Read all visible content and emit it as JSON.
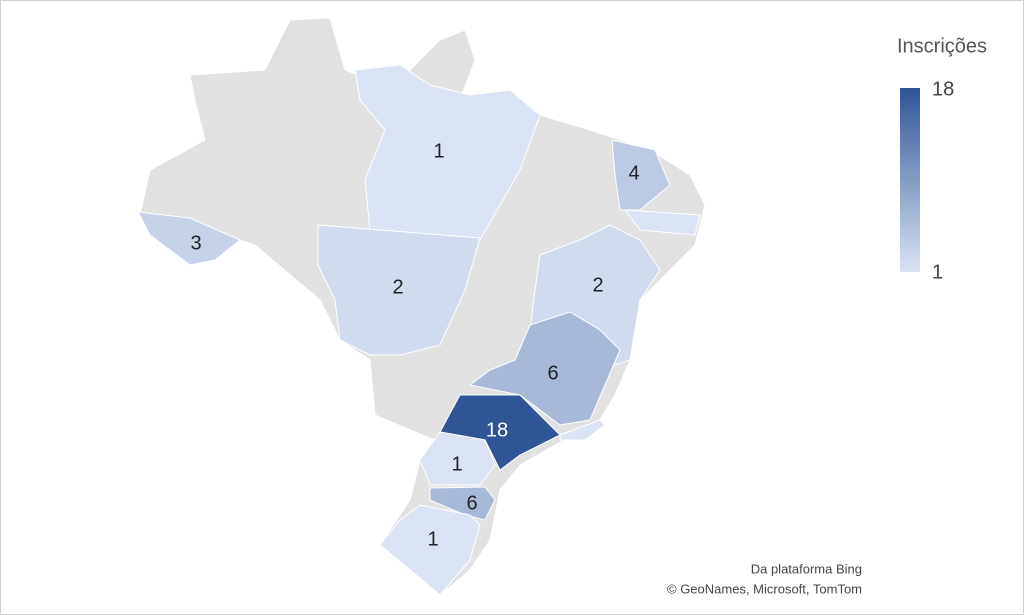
{
  "legend": {
    "title": "Inscrições",
    "max": 18,
    "min": 1
  },
  "regions": [
    {
      "value": 1
    },
    {
      "value": 4
    },
    {
      "value": 3
    },
    {
      "value": 2
    },
    {
      "value": 2
    },
    {
      "value": 6
    },
    {
      "value": 18
    },
    {
      "value": 1
    },
    {
      "value": 6
    },
    {
      "value": 1
    }
  ],
  "attribution": [
    "Da plataforma Bing",
    "© GeoNames, Microsoft, TomTom"
  ]
}
